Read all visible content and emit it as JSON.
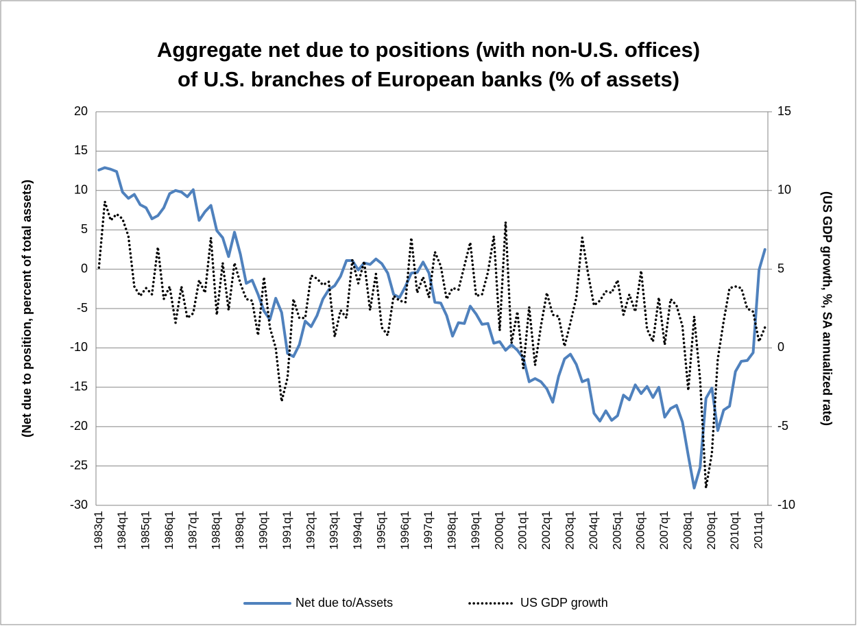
{
  "chart_data": {
    "type": "line",
    "title": [
      "Aggregate net due to positions (with non-U.S. offices)",
      "of U.S. branches of European banks (% of assets)"
    ],
    "y_label": "(Net due to position, percent of total assets)",
    "y2_label": "(US GDP growth, %, SA annualized rate)",
    "categories": [
      "1983q1",
      null,
      null,
      null,
      "1984q1",
      null,
      null,
      null,
      "1985q1",
      null,
      null,
      null,
      "1986q1",
      null,
      null,
      null,
      "1987q1",
      null,
      null,
      null,
      "1988q1",
      null,
      null,
      null,
      "1989q1",
      null,
      null,
      null,
      "1990q1",
      null,
      null,
      null,
      "1991q1",
      null,
      null,
      null,
      "1992q1",
      null,
      null,
      null,
      "1993q1",
      null,
      null,
      null,
      "1994q1",
      null,
      null,
      null,
      "1995q1",
      null,
      null,
      null,
      "1996q1",
      null,
      null,
      null,
      "1997q1",
      null,
      null,
      null,
      "1998q1",
      null,
      null,
      null,
      "1999q1",
      null,
      null,
      null,
      "2000q1",
      null,
      null,
      null,
      "2001q1",
      null,
      null,
      null,
      "2002q1",
      null,
      null,
      null,
      "2003q1",
      null,
      null,
      null,
      "2004q1",
      null,
      null,
      null,
      "2005q1",
      null,
      null,
      null,
      "2006q1",
      null,
      null,
      null,
      "2007q1",
      null,
      null,
      null,
      "2008q1",
      null,
      null,
      null,
      "2009q1",
      null,
      null,
      null,
      "2010q1",
      null,
      null,
      null,
      "2011q1",
      null
    ],
    "series": [
      {
        "name": "Net due to/Assets",
        "color": "#4f81bd",
        "axis": "y",
        "values": [
          12.6,
          12.9,
          12.7,
          12.4,
          9.8,
          9.0,
          9.5,
          8.2,
          7.8,
          6.4,
          6.8,
          7.8,
          9.6,
          10.0,
          9.8,
          9.2,
          10.1,
          6.2,
          7.3,
          8.1,
          4.9,
          4.0,
          1.6,
          4.7,
          1.9,
          -1.8,
          -1.4,
          -3.2,
          -5.3,
          -6.4,
          -3.7,
          -5.5,
          -10.7,
          -11.1,
          -9.6,
          -6.6,
          -7.3,
          -5.9,
          -3.8,
          -2.6,
          -2.1,
          -0.9,
          1.1,
          1.1,
          -0.1,
          0.8,
          0.6,
          1.3,
          0.7,
          -0.5,
          -3.2,
          -3.6,
          -2.2,
          -0.5,
          -0.4,
          0.9,
          -0.5,
          -4.2,
          -4.3,
          -5.9,
          -8.5,
          -6.8,
          -6.9,
          -4.7,
          -5.7,
          -7.0,
          -6.9,
          -9.4,
          -9.2,
          -10.3,
          -9.6,
          -10.3,
          -11.3,
          -14.3,
          -13.9,
          -14.3,
          -15.2,
          -16.9,
          -13.6,
          -11.4,
          -10.8,
          -12.1,
          -14.3,
          -14.0,
          -18.3,
          -19.3,
          -18.0,
          -19.2,
          -18.6,
          -16.0,
          -16.6,
          -14.7,
          -15.8,
          -14.9,
          -16.3,
          -15.0,
          -18.8,
          -17.7,
          -17.3,
          -19.4,
          -23.7,
          -27.8,
          -25.2,
          -16.4,
          -15.1,
          -20.5,
          -17.9,
          -17.4,
          -13.0,
          -11.7,
          -11.6,
          -10.6,
          -0.1,
          2.5
        ]
      },
      {
        "name": "US GDP growth",
        "color": "#000000",
        "axis": "y2",
        "values": [
          5.1,
          9.3,
          8.1,
          8.5,
          8.2,
          7.1,
          3.9,
          3.3,
          3.8,
          3.4,
          6.4,
          3.1,
          3.9,
          1.6,
          3.9,
          1.9,
          2.2,
          4.3,
          3.5,
          7.0,
          2.1,
          5.4,
          2.4,
          5.4,
          4.1,
          3.1,
          3.0,
          0.8,
          4.5,
          1.3,
          0.0,
          -3.4,
          -1.9,
          3.1,
          1.9,
          1.9,
          4.6,
          4.4,
          4.0,
          4.2,
          0.7,
          2.4,
          1.9,
          5.6,
          4.1,
          5.5,
          2.4,
          4.7,
          1.3,
          0.8,
          3.3,
          3.0,
          2.9,
          7.0,
          3.5,
          4.5,
          3.2,
          6.1,
          5.2,
          3.1,
          3.8,
          3.7,
          5.2,
          6.7,
          3.3,
          3.4,
          4.8,
          7.1,
          1.1,
          8.0,
          0.3,
          2.3,
          -1.3,
          2.6,
          -1.1,
          1.4,
          3.5,
          2.1,
          2.0,
          0.1,
          1.6,
          3.2,
          7.0,
          4.7,
          2.7,
          3.0,
          3.6,
          3.5,
          4.3,
          2.1,
          3.4,
          2.3,
          4.9,
          1.2,
          0.4,
          3.2,
          0.2,
          3.1,
          2.7,
          1.4,
          -2.7,
          2.0,
          -2.0,
          -8.9,
          -6.7,
          -0.7,
          1.7,
          3.8,
          3.9,
          3.8,
          2.5,
          2.3,
          0.4,
          1.3
        ]
      }
    ],
    "ylim": [
      -30,
      20
    ],
    "yticks": [
      -30,
      -25,
      -20,
      -15,
      -10,
      -5,
      0,
      5,
      10,
      15,
      20
    ],
    "y2lim": [
      -10,
      15
    ],
    "y2ticks": [
      -10,
      -5,
      0,
      5,
      10,
      15
    ],
    "grid": true,
    "legend": "bottom"
  }
}
